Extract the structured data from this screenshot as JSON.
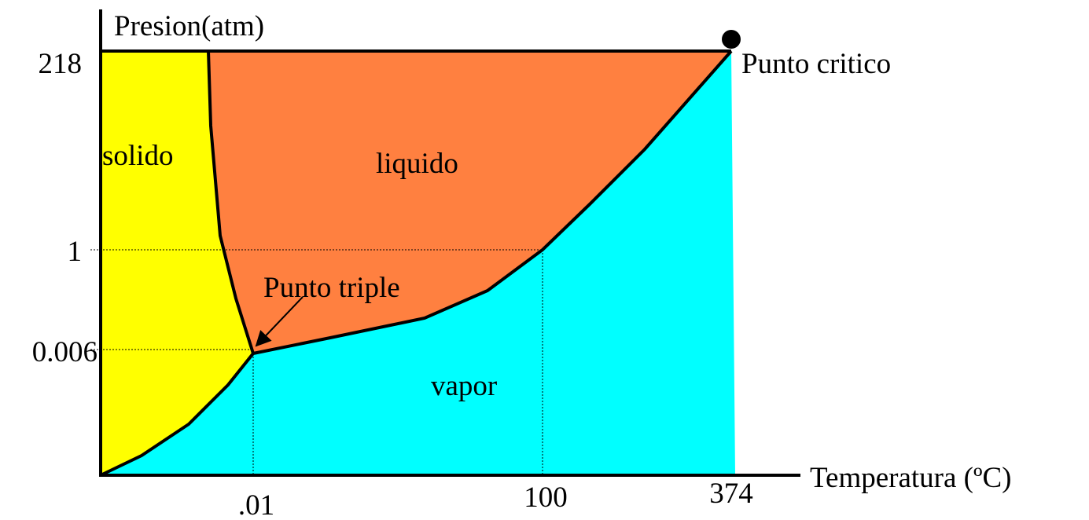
{
  "axes": {
    "y_label": "Presion(atm)",
    "x_label": "Temperatura (ºC)",
    "y_ticks": [
      "218",
      "1",
      "0.006"
    ],
    "x_ticks": [
      ".01",
      "100",
      "374"
    ]
  },
  "regions": [
    "solido",
    "liquido",
    "vapor"
  ],
  "annotations": {
    "critical_point": "Punto critico",
    "triple_point": "Punto triple"
  }
}
